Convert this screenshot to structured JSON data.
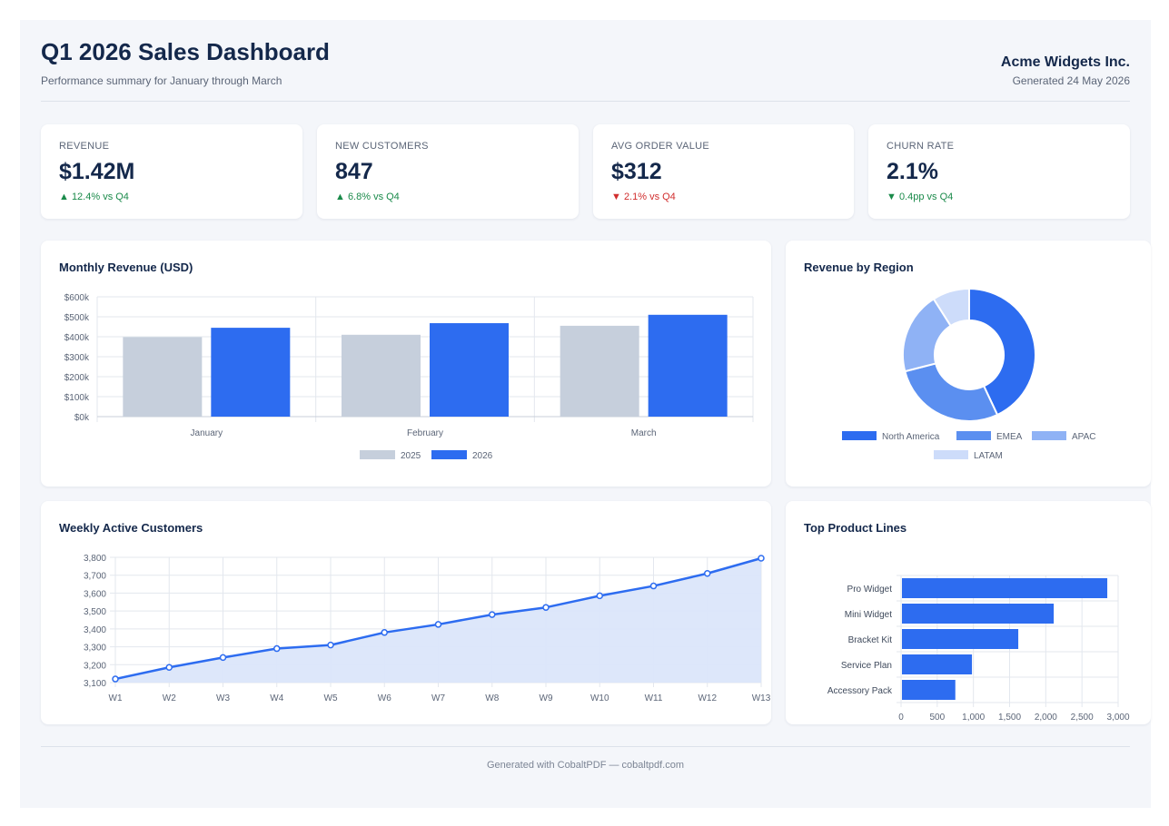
{
  "header": {
    "title": "Q1 2026 Sales Dashboard",
    "subtitle": "Performance summary for January through March",
    "company": "Acme Widgets Inc.",
    "generated": "Generated 24 May 2026"
  },
  "kpis": [
    {
      "label": "REVENUE",
      "value": "$1.42M",
      "delta": "▲ 12.4% vs Q4",
      "trend": "up"
    },
    {
      "label": "NEW CUSTOMERS",
      "value": "847",
      "delta": "▲ 6.8% vs Q4",
      "trend": "up"
    },
    {
      "label": "AVG ORDER VALUE",
      "value": "$312",
      "delta": "▼ 2.1% vs Q4",
      "trend": "down"
    },
    {
      "label": "CHURN RATE",
      "value": "2.1%",
      "delta": "▼ 0.4pp vs Q4",
      "trend": "up"
    }
  ],
  "colors": {
    "primary": "#2d6cf0",
    "muted_bar": "#c6cfdc",
    "emea": "#5b8ff0",
    "apac": "#8fb2f5",
    "latam": "#cddcfa",
    "area_fill": "#dbe6fa",
    "grid": "#e3e7ee"
  },
  "chart_data": [
    {
      "type": "bar",
      "title": "Monthly Revenue (USD)",
      "categories": [
        "January",
        "February",
        "March"
      ],
      "series": [
        {
          "name": "2025",
          "values": [
            398000,
            410000,
            455000
          ]
        },
        {
          "name": "2026",
          "values": [
            445000,
            468000,
            510000
          ]
        }
      ],
      "ylim": [
        0,
        600000
      ],
      "yticks": [
        "$0k",
        "$100k",
        "$200k",
        "$300k",
        "$400k",
        "$500k",
        "$600k"
      ],
      "legend": "bottom",
      "grid": true
    },
    {
      "type": "pie",
      "title": "Revenue by Region",
      "donut": true,
      "labels": [
        "North America",
        "EMEA",
        "APAC",
        "LATAM"
      ],
      "values": [
        43,
        28,
        20,
        9
      ],
      "legend": "bottom"
    },
    {
      "type": "area",
      "title": "Weekly Active Customers",
      "x": [
        "W1",
        "W2",
        "W3",
        "W4",
        "W5",
        "W6",
        "W7",
        "W8",
        "W9",
        "W10",
        "W11",
        "W12",
        "W13"
      ],
      "values": [
        3120,
        3185,
        3240,
        3290,
        3310,
        3380,
        3425,
        3480,
        3520,
        3585,
        3640,
        3710,
        3795
      ],
      "ylim": [
        3100,
        3800
      ],
      "yticks": [
        "3,100",
        "3,200",
        "3,300",
        "3,400",
        "3,500",
        "3,600",
        "3,700",
        "3,800"
      ],
      "grid": true
    },
    {
      "type": "bar",
      "orientation": "horizontal",
      "title": "Top Product Lines",
      "categories": [
        "Pro Widget",
        "Mini Widget",
        "Bracket Kit",
        "Service Plan",
        "Accessory Pack"
      ],
      "values": [
        2850,
        2110,
        1620,
        980,
        750
      ],
      "xlim": [
        0,
        3000
      ],
      "xticks": [
        "0",
        "500",
        "1,000",
        "1,500",
        "2,000",
        "2,500",
        "3,000"
      ],
      "grid": true
    }
  ],
  "footer": "Generated with CobaltPDF — cobaltpdf.com"
}
